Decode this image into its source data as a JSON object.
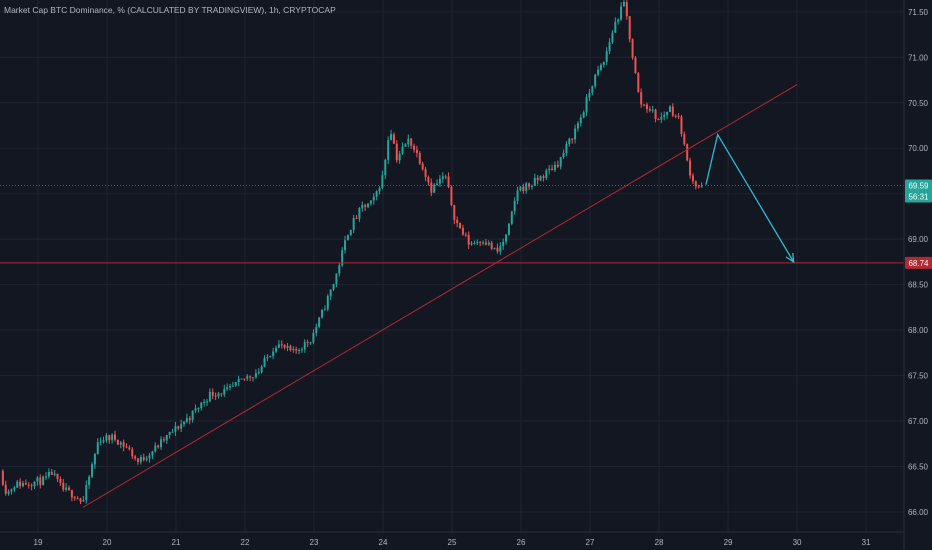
{
  "header": {
    "title": "Market Cap BTC Dominance, % (CALCULATED BY TRADINGVIEW), 1h, CRYPTOCAP"
  },
  "colors": {
    "background": "#131722",
    "grid": "#1f2433",
    "text": "#b2b5be",
    "up": "#26a69a",
    "down": "#ef5350",
    "trendline": "#b22833",
    "level_line": "#b22833",
    "arrow": "#2ebbd1",
    "price_line": "#26a69a"
  },
  "chart_data": {
    "type": "candlestick",
    "title": "Market Cap BTC Dominance, % (CALCULATED BY TRADINGVIEW), 1h, CRYPTOCAP",
    "x_ticks": [
      "19",
      "20",
      "21",
      "22",
      "23",
      "24",
      "25",
      "26",
      "27",
      "28",
      "29",
      "30",
      "31"
    ],
    "y_ticks": [
      "66.00",
      "66.50",
      "67.00",
      "67.50",
      "68.00",
      "68.50",
      "69.00",
      "69.50",
      "70.00",
      "70.50",
      "71.00",
      "71.50"
    ],
    "x_range_days": [
      18.45,
      31.55
    ],
    "y_range": [
      65.78,
      71.63
    ],
    "grid": true,
    "price_path": [
      {
        "d": 18.45,
        "v": 66.45
      },
      {
        "d": 18.55,
        "v": 66.2
      },
      {
        "d": 18.65,
        "v": 66.3
      },
      {
        "d": 18.85,
        "v": 66.32
      },
      {
        "d": 19.1,
        "v": 66.35
      },
      {
        "d": 19.2,
        "v": 66.43
      },
      {
        "d": 19.35,
        "v": 66.25
      },
      {
        "d": 19.55,
        "v": 66.18
      },
      {
        "d": 19.65,
        "v": 66.1
      },
      {
        "d": 19.78,
        "v": 66.5
      },
      {
        "d": 19.88,
        "v": 66.8
      },
      {
        "d": 20.1,
        "v": 66.82
      },
      {
        "d": 20.3,
        "v": 66.7
      },
      {
        "d": 20.45,
        "v": 66.55
      },
      {
        "d": 20.7,
        "v": 66.7
      },
      {
        "d": 20.9,
        "v": 66.85
      },
      {
        "d": 21.2,
        "v": 67.05
      },
      {
        "d": 21.5,
        "v": 67.3
      },
      {
        "d": 21.75,
        "v": 67.33
      },
      {
        "d": 22.0,
        "v": 67.47
      },
      {
        "d": 22.2,
        "v": 67.55
      },
      {
        "d": 22.45,
        "v": 67.85
      },
      {
        "d": 22.7,
        "v": 67.75
      },
      {
        "d": 22.95,
        "v": 67.9
      },
      {
        "d": 23.1,
        "v": 68.15
      },
      {
        "d": 23.3,
        "v": 68.55
      },
      {
        "d": 23.5,
        "v": 69.1
      },
      {
        "d": 23.7,
        "v": 69.35
      },
      {
        "d": 23.85,
        "v": 69.4
      },
      {
        "d": 24.0,
        "v": 69.7
      },
      {
        "d": 24.1,
        "v": 70.25
      },
      {
        "d": 24.2,
        "v": 69.9
      },
      {
        "d": 24.38,
        "v": 70.1
      },
      {
        "d": 24.55,
        "v": 69.85
      },
      {
        "d": 24.7,
        "v": 69.55
      },
      {
        "d": 24.9,
        "v": 69.7
      },
      {
        "d": 25.05,
        "v": 69.2
      },
      {
        "d": 25.25,
        "v": 68.95
      },
      {
        "d": 25.45,
        "v": 69.0
      },
      {
        "d": 25.65,
        "v": 68.85
      },
      {
        "d": 25.8,
        "v": 69.05
      },
      {
        "d": 25.95,
        "v": 69.55
      },
      {
        "d": 26.15,
        "v": 69.6
      },
      {
        "d": 26.35,
        "v": 69.72
      },
      {
        "d": 26.55,
        "v": 69.85
      },
      {
        "d": 26.75,
        "v": 70.15
      },
      {
        "d": 26.9,
        "v": 70.4
      },
      {
        "d": 27.05,
        "v": 70.75
      },
      {
        "d": 27.2,
        "v": 70.95
      },
      {
        "d": 27.35,
        "v": 71.35
      },
      {
        "d": 27.5,
        "v": 71.6
      },
      {
        "d": 27.62,
        "v": 71.0
      },
      {
        "d": 27.72,
        "v": 70.5
      },
      {
        "d": 27.85,
        "v": 70.45
      },
      {
        "d": 28.0,
        "v": 70.3
      },
      {
        "d": 28.15,
        "v": 70.45
      },
      {
        "d": 28.3,
        "v": 70.3
      },
      {
        "d": 28.42,
        "v": 69.8
      },
      {
        "d": 28.52,
        "v": 69.6
      },
      {
        "d": 28.62,
        "v": 69.55
      }
    ],
    "trendline": {
      "from": {
        "d": 19.65,
        "v": 66.05
      },
      "to": {
        "d": 30.0,
        "v": 70.7
      }
    },
    "level_line": {
      "v": 68.74,
      "label": "68.74"
    },
    "last_price": {
      "v": 69.59,
      "label": "69.59",
      "countdown": "56:31"
    },
    "projection_arrow": [
      {
        "d": 28.68,
        "v": 69.6
      },
      {
        "d": 28.85,
        "v": 70.15
      },
      {
        "d": 29.95,
        "v": 68.75
      }
    ]
  }
}
